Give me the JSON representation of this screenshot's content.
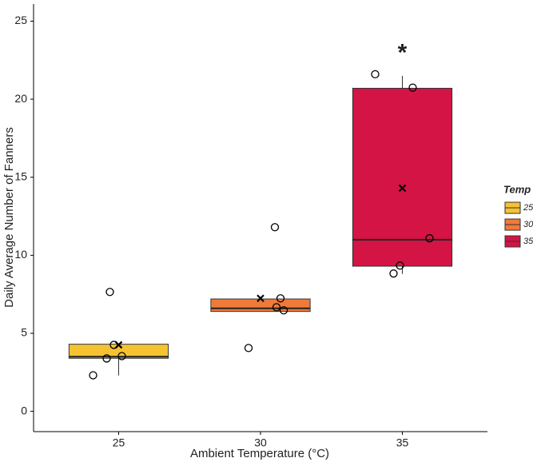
{
  "chart_data": {
    "type": "box",
    "x_label": "Ambient Temperature (°C)",
    "y_label": "Daily Average Number of Fanners",
    "categories": [
      "25",
      "30",
      "35"
    ],
    "colors": [
      "#f5c232",
      "#f07a3a",
      "#d41444"
    ],
    "boxes": [
      {
        "low": 2.3,
        "q1": 3.4,
        "median": 3.5,
        "q3": 4.3,
        "high": 4.3,
        "mean": 4.26,
        "points": [
          7.65,
          4.26,
          3.39,
          3.54,
          2.31
        ]
      },
      {
        "low": 6.4,
        "q1": 6.4,
        "median": 6.6,
        "q3": 7.2,
        "high": 7.2,
        "mean": 7.24,
        "points": [
          11.8,
          7.24,
          6.67,
          6.47,
          4.06
        ]
      },
      {
        "low": 8.8,
        "q1": 9.3,
        "median": 11.0,
        "q3": 20.7,
        "high": 21.5,
        "mean": 14.3,
        "points": [
          21.6,
          20.74,
          11.09,
          9.34,
          8.83
        ]
      }
    ],
    "annotation": {
      "text": "*",
      "category": 2,
      "y": 23.2
    },
    "ylim": [
      -1.3,
      26.1
    ],
    "yticks": [
      0,
      5,
      10,
      15,
      20,
      25
    ],
    "legend_title": "Temp",
    "legend_position": "right"
  }
}
